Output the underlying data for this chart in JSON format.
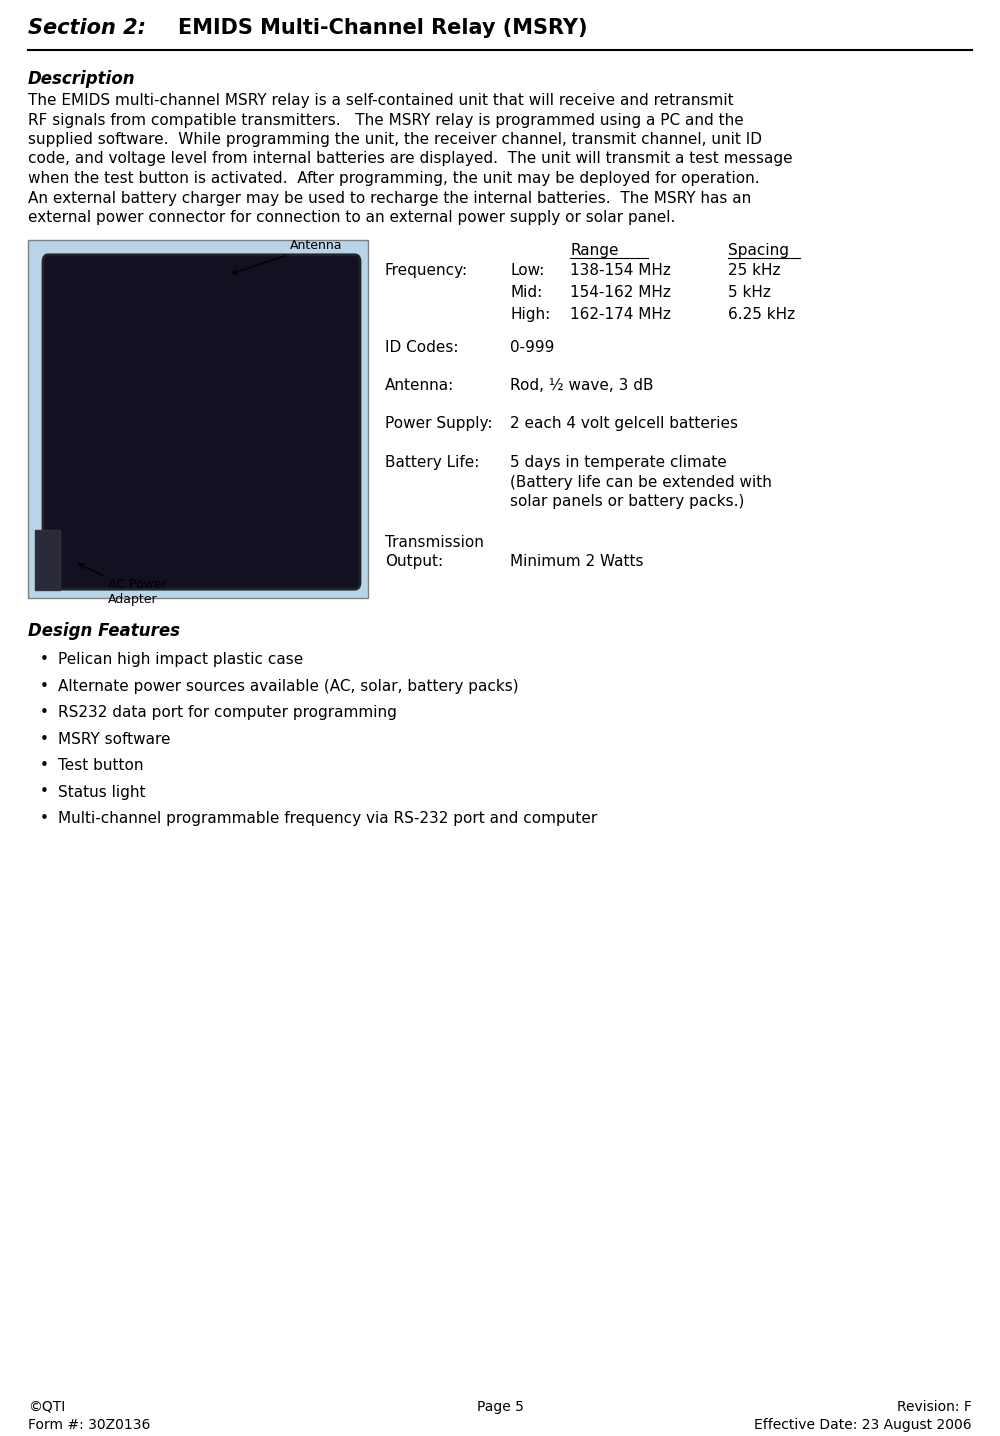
{
  "title_section": "Section 2:",
  "title_main": "EMIDS Multi-Channel Relay (MSRY)",
  "description_heading": "Description",
  "desc_lines": [
    "The EMIDS multi-channel MSRY relay is a self-contained unit that will receive and retransmit",
    "RF signals from compatible transmitters.   The MSRY relay is programmed using a PC and the",
    "supplied software.  While programming the unit, the receiver channel, transmit channel, unit ID",
    "code, and voltage level from internal batteries are displayed.  The unit will transmit a test message",
    "when the test button is activated.  After programming, the unit may be deployed for operation.",
    "An external battery charger may be used to recharge the internal batteries.  The MSRY has an",
    "external power connector for connection to an external power supply or solar panel."
  ],
  "table_header_range": "Range",
  "table_header_spacing": "Spacing",
  "freq_label": "Frequency:",
  "freq_rows": [
    {
      "band": "Low:",
      "range": "138-154 MHz",
      "spacing": "25 kHz"
    },
    {
      "band": "Mid:",
      "range": "154-162 MHz",
      "spacing": "5 kHz"
    },
    {
      "band": "High:",
      "range": "162-174 MHz",
      "spacing": "6.25 kHz"
    }
  ],
  "id_codes_label": "ID Codes:",
  "id_codes_value": "0-999",
  "antenna_label": "Antenna:",
  "antenna_value": "Rod, ½ wave, 3 dB",
  "power_supply_label": "Power Supply:",
  "power_supply_value": "2 each 4 volt gelcell batteries",
  "battery_life_label": "Battery Life:",
  "battery_life_lines": [
    "5 days in temperate climate",
    "(Battery life can be extended with",
    "solar panels or battery packs.)"
  ],
  "transmission_label_lines": [
    "Transmission",
    "Output:"
  ],
  "transmission_value": "Minimum 2 Watts",
  "image_annotation_antenna": "Antenna",
  "image_annotation_ac": "AC Power\nAdapter",
  "design_heading": "Design Features",
  "design_bullets": [
    "Pelican high impact plastic case",
    "Alternate power sources available (AC, solar, battery packs)",
    "RS232 data port for computer programming",
    "MSRY software",
    "Test button",
    "Status light",
    "Multi-channel programmable frequency via RS-232 port and computer"
  ],
  "footer_left_line1": "©QTI",
  "footer_left_line2": "Form #: 30Z0136",
  "footer_center": "Page 5",
  "footer_right_line1": "Revision: F",
  "footer_right_line2": "Effective Date: 23 August 2006",
  "bg_color": "#ffffff",
  "text_color": "#000000"
}
